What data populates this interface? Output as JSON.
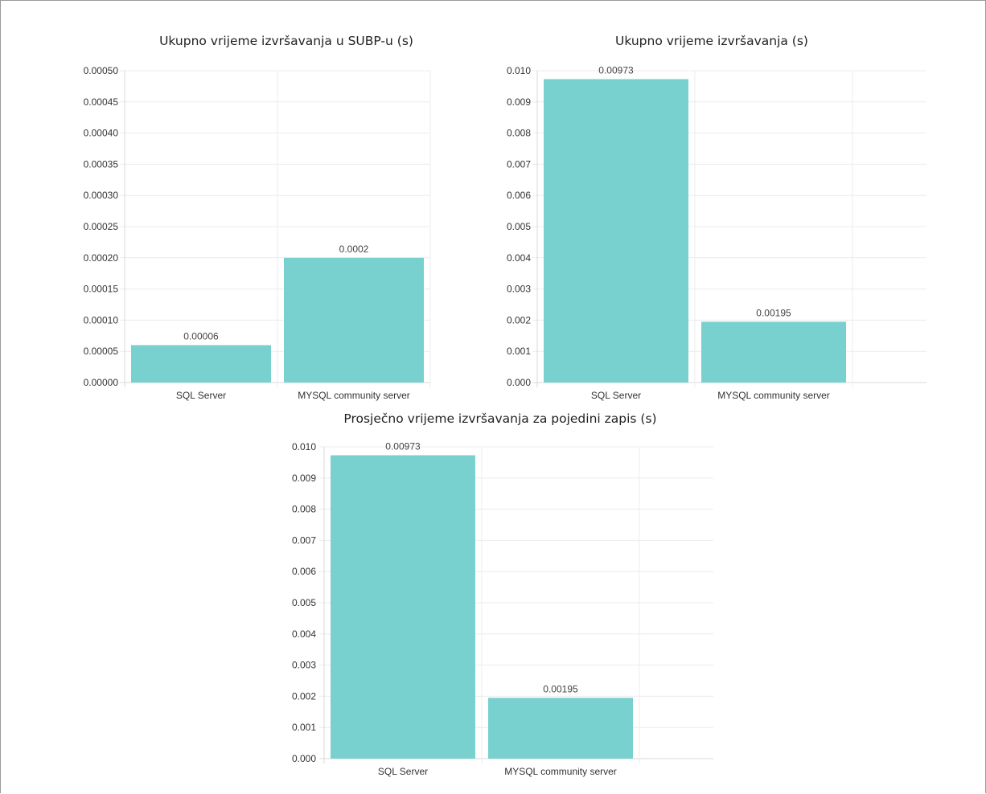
{
  "colors": {
    "bar": "#78d1cf",
    "grid": "#ececec",
    "axis": "#d8d8d8",
    "text": "#333333"
  },
  "chart_data": [
    {
      "type": "bar",
      "title": "Ukupno vrijeme izvršavanja u SUBP-u (s)",
      "categories": [
        "SQL Server",
        "MYSQL community server"
      ],
      "values": [
        6e-05,
        0.0002
      ],
      "data_labels": [
        "0.00006",
        "0.0002"
      ],
      "y_ticks": [
        "0.00000",
        "0.00005",
        "0.00010",
        "0.00015",
        "0.00020",
        "0.00025",
        "0.00030",
        "0.00035",
        "0.00040",
        "0.00045",
        "0.00050"
      ],
      "ylim": [
        0,
        0.0005
      ],
      "grid": true,
      "legend": "none"
    },
    {
      "type": "bar",
      "title": "Ukupno vrijeme izvršavanja (s)",
      "categories": [
        "SQL Server",
        "MYSQL community server"
      ],
      "values": [
        0.00973,
        0.00195
      ],
      "data_labels": [
        "0.00973",
        "0.00195"
      ],
      "y_ticks": [
        "0.000",
        "0.001",
        "0.002",
        "0.003",
        "0.004",
        "0.005",
        "0.006",
        "0.007",
        "0.008",
        "0.009",
        "0.010"
      ],
      "ylim": [
        0,
        0.01
      ],
      "grid": true,
      "legend": "none"
    },
    {
      "type": "bar",
      "title": "Prosječno vrijeme izvršavanja za pojedini zapis (s)",
      "categories": [
        "SQL Server",
        "MYSQL community server"
      ],
      "values": [
        0.00973,
        0.00195
      ],
      "data_labels": [
        "0.00973",
        "0.00195"
      ],
      "y_ticks": [
        "0.000",
        "0.001",
        "0.002",
        "0.003",
        "0.004",
        "0.005",
        "0.006",
        "0.007",
        "0.008",
        "0.009",
        "0.010"
      ],
      "ylim": [
        0,
        0.01
      ],
      "grid": true,
      "legend": "none"
    }
  ]
}
